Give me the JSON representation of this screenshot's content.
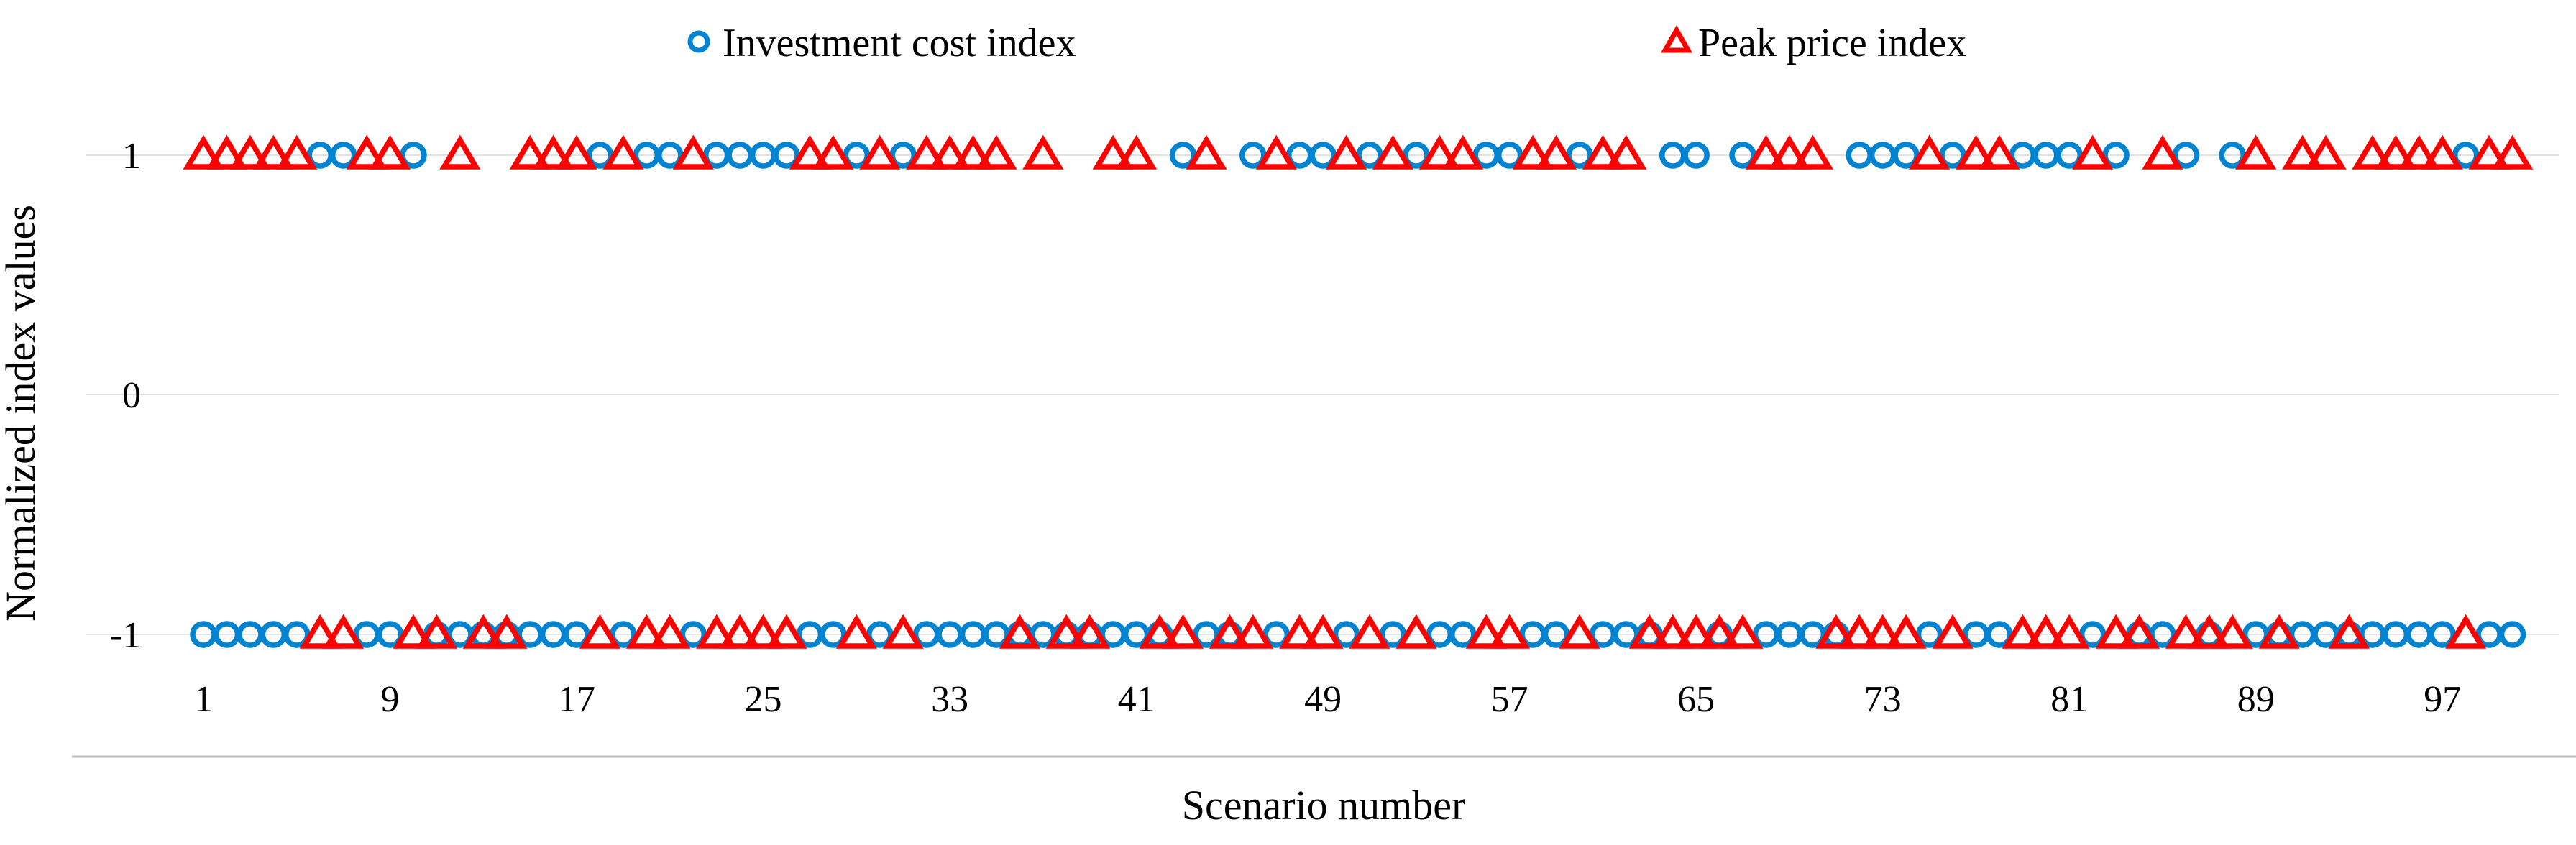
{
  "chart_data": {
    "type": "scatter",
    "title": "",
    "xlabel": "Scenario number",
    "ylabel": "Normalized index values",
    "x_range": [
      1,
      100
    ],
    "ylim": [
      -1,
      1
    ],
    "y_ticks": [
      "1",
      "0",
      "-1"
    ],
    "y_tick_values": [
      1,
      0,
      -1
    ],
    "x_ticks": [
      "1",
      "9",
      "17",
      "25",
      "33",
      "41",
      "49",
      "57",
      "65",
      "73",
      "81",
      "89",
      "97"
    ],
    "x_tick_values": [
      1,
      9,
      17,
      25,
      33,
      41,
      49,
      57,
      65,
      73,
      81,
      89,
      97
    ],
    "grid": true,
    "legend_position": "top",
    "x": [
      1,
      2,
      3,
      4,
      5,
      6,
      7,
      8,
      9,
      10,
      11,
      12,
      13,
      14,
      15,
      16,
      17,
      18,
      19,
      20,
      21,
      22,
      23,
      24,
      25,
      26,
      27,
      28,
      29,
      30,
      31,
      32,
      33,
      34,
      35,
      36,
      37,
      38,
      39,
      40,
      41,
      42,
      43,
      44,
      45,
      46,
      47,
      48,
      49,
      50,
      51,
      52,
      53,
      54,
      55,
      56,
      57,
      58,
      59,
      60,
      61,
      62,
      63,
      64,
      65,
      66,
      67,
      68,
      69,
      70,
      71,
      72,
      73,
      74,
      75,
      76,
      77,
      78,
      79,
      80,
      81,
      82,
      83,
      84,
      85,
      86,
      87,
      88,
      89,
      90,
      91,
      92,
      93,
      94,
      95,
      96,
      97,
      98,
      99,
      100
    ],
    "series": [
      {
        "name": "Investment cost index",
        "marker": "circle",
        "color": "#0084D1",
        "values": [
          -1,
          -1,
          -1,
          -1,
          -1,
          1,
          1,
          -1,
          -1,
          1,
          -1,
          -1,
          -1,
          -1,
          -1,
          -1,
          -1,
          1,
          -1,
          1,
          1,
          -1,
          1,
          1,
          1,
          1,
          -1,
          -1,
          1,
          -1,
          1,
          -1,
          -1,
          -1,
          -1,
          -1,
          -1,
          -1,
          -1,
          -1,
          -1,
          -1,
          1,
          -1,
          -1,
          1,
          -1,
          1,
          1,
          -1,
          1,
          -1,
          1,
          -1,
          -1,
          1,
          1,
          -1,
          -1,
          1,
          -1,
          -1,
          -1,
          1,
          1,
          -1,
          1,
          -1,
          -1,
          -1,
          -1,
          1,
          1,
          1,
          -1,
          1,
          -1,
          -1,
          1,
          1,
          1,
          -1,
          1,
          -1,
          -1,
          1,
          -1,
          1,
          -1,
          -1,
          -1,
          -1,
          -1,
          -1,
          -1,
          -1,
          -1,
          1,
          -1,
          -1
        ]
      },
      {
        "name": "Peak price index",
        "marker": "triangle",
        "color": "#FE0000",
        "values": [
          1,
          1,
          1,
          1,
          1,
          -1,
          -1,
          1,
          1,
          -1,
          -1,
          1,
          -1,
          -1,
          1,
          1,
          1,
          -1,
          1,
          -1,
          -1,
          1,
          -1,
          -1,
          -1,
          -1,
          1,
          1,
          -1,
          1,
          -1,
          1,
          1,
          1,
          1,
          -1,
          1,
          -1,
          -1,
          1,
          1,
          -1,
          -1,
          1,
          -1,
          -1,
          1,
          -1,
          -1,
          1,
          -1,
          1,
          -1,
          1,
          1,
          -1,
          -1,
          1,
          1,
          -1,
          1,
          1,
          -1,
          -1,
          -1,
          -1,
          -1,
          1,
          1,
          1,
          -1,
          -1,
          -1,
          -1,
          1,
          -1,
          1,
          1,
          -1,
          -1,
          -1,
          1,
          -1,
          -1,
          1,
          -1,
          -1,
          -1,
          1,
          -1,
          1,
          1,
          -1,
          1,
          1,
          1,
          1,
          -1,
          1,
          1
        ]
      }
    ]
  },
  "legend": {
    "items": [
      {
        "label": "Investment cost index",
        "color": "#0084D1",
        "marker": "circle"
      },
      {
        "label": "Peak price index",
        "color": "#FE0000",
        "marker": "triangle"
      }
    ]
  },
  "axes": {
    "x_title": "Scenario number",
    "y_title": "Normalized index values"
  },
  "colors": {
    "background": "#FFFFFF",
    "gridline": "#E2E2E2",
    "axis_line": "#BFBFBF",
    "text": "#000000",
    "investment": "#0084D1",
    "peak": "#FE0000"
  }
}
